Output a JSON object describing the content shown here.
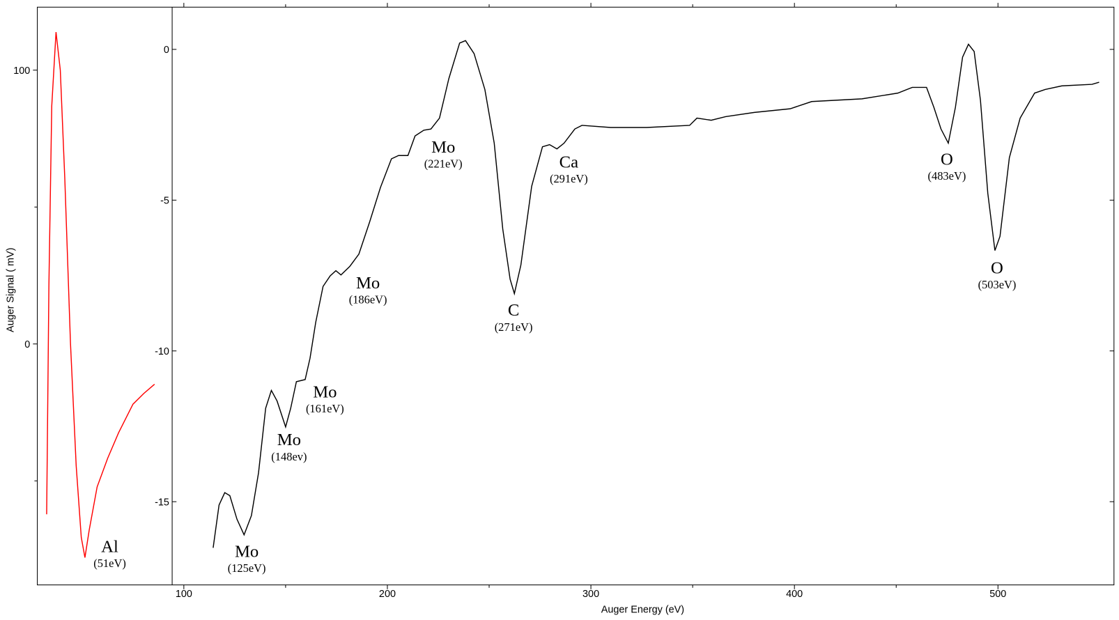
{
  "chart_data": {
    "type": "line",
    "xlabel": "Auger Energy (eV)",
    "ylabel": "Auger Signal ( mV)",
    "xlim": [
      28,
      557
    ],
    "xticks": [
      100,
      200,
      300,
      400,
      500
    ],
    "xminorticks": [
      150,
      250,
      350,
      450
    ],
    "ylim": [
      -88,
      123
    ],
    "yticks": [
      0,
      100
    ],
    "yminorticks": [
      -50,
      50
    ],
    "y2lim": [
      -17.76,
      1.4
    ],
    "y2ticks": [
      0,
      -5,
      -10,
      -15
    ],
    "series": [
      {
        "color": "#ff0000",
        "axis": "y",
        "x": [
          32.6,
          33.7,
          35.1,
          37.2,
          39.3,
          41.5,
          44.3,
          47.1,
          49.6,
          51.4,
          53.5,
          57.4,
          62.6,
          67.9,
          75.0,
          80.3,
          85.6
        ],
        "values": [
          -62.2,
          21.3,
          86.9,
          113.9,
          100,
          60.6,
          0.3,
          -44.4,
          -70.6,
          -78.0,
          -68.0,
          -52.2,
          -41.7,
          -32.5,
          -22.0,
          -18.1,
          -14.7
        ]
      },
      {
        "color": "#000000",
        "axis": "y2",
        "x": [
          114.4,
          117.3,
          120.1,
          122.6,
          126.1,
          129.6,
          133.2,
          136.7,
          140.2,
          143.0,
          145.8,
          150.0,
          152.5,
          155.3,
          159.6,
          162.0,
          164.8,
          168.4,
          171.9,
          174.7,
          177.2,
          181.5,
          186.0,
          191.3,
          196.6,
          202.0,
          205.5,
          210.1,
          213.6,
          217.9,
          221.4,
          225.6,
          230.2,
          235.5,
          238.4,
          242.6,
          247.9,
          252.5,
          256.7,
          260.3,
          262.4,
          265.6,
          270.9,
          276.2,
          279.7,
          283.3,
          286.8,
          292.1,
          295.6,
          309.7,
          327.4,
          348.5,
          352.1,
          359.1,
          366.2,
          380.3,
          397.9,
          408.5,
          433.2,
          450.8,
          457.9,
          464.9,
          468.5,
          472.0,
          475.6,
          479.1,
          482.6,
          485.5,
          488.3,
          491.4,
          495.0,
          498.5,
          501.0,
          505.6,
          510.9,
          518.0,
          523.2,
          531.4,
          546.2,
          549.7
        ],
        "values": [
          -16.53,
          -15.11,
          -14.7,
          -14.8,
          -15.58,
          -16.1,
          -15.46,
          -14.04,
          -11.9,
          -11.31,
          -11.66,
          -12.52,
          -11.9,
          -11.02,
          -10.95,
          -10.24,
          -9.05,
          -7.86,
          -7.51,
          -7.34,
          -7.48,
          -7.2,
          -6.79,
          -5.72,
          -4.58,
          -3.63,
          -3.52,
          -3.52,
          -2.87,
          -2.68,
          -2.64,
          -2.28,
          -0.97,
          0.21,
          0.29,
          -0.14,
          -1.33,
          -3.11,
          -5.96,
          -7.62,
          -8.1,
          -7.15,
          -4.54,
          -3.23,
          -3.16,
          -3.3,
          -3.11,
          -2.64,
          -2.52,
          -2.59,
          -2.59,
          -2.52,
          -2.28,
          -2.35,
          -2.23,
          -2.09,
          -1.97,
          -1.73,
          -1.64,
          -1.45,
          -1.26,
          -1.26,
          -1.92,
          -2.64,
          -3.11,
          -1.92,
          -0.26,
          0.17,
          -0.07,
          -1.69,
          -4.77,
          -6.67,
          -6.2,
          -3.59,
          -2.28,
          -1.45,
          -1.33,
          -1.21,
          -1.16,
          -1.09
        ]
      }
    ],
    "annotations": [
      {
        "name": "Al",
        "energy": "(51eV)"
      },
      {
        "name": "Mo",
        "energy": "(125eV)"
      },
      {
        "name": "Mo",
        "energy": "(148ev)"
      },
      {
        "name": "Mo",
        "energy": "(161eV)"
      },
      {
        "name": "Mo",
        "energy": "(186eV)"
      },
      {
        "name": "Mo",
        "energy": "(221eV)"
      },
      {
        "name": "C",
        "energy": "(271eV)"
      },
      {
        "name": "Ca",
        "energy": "(291eV)"
      },
      {
        "name": "O",
        "energy": "(483eV)"
      },
      {
        "name": "O",
        "energy": "(503eV)"
      }
    ]
  }
}
